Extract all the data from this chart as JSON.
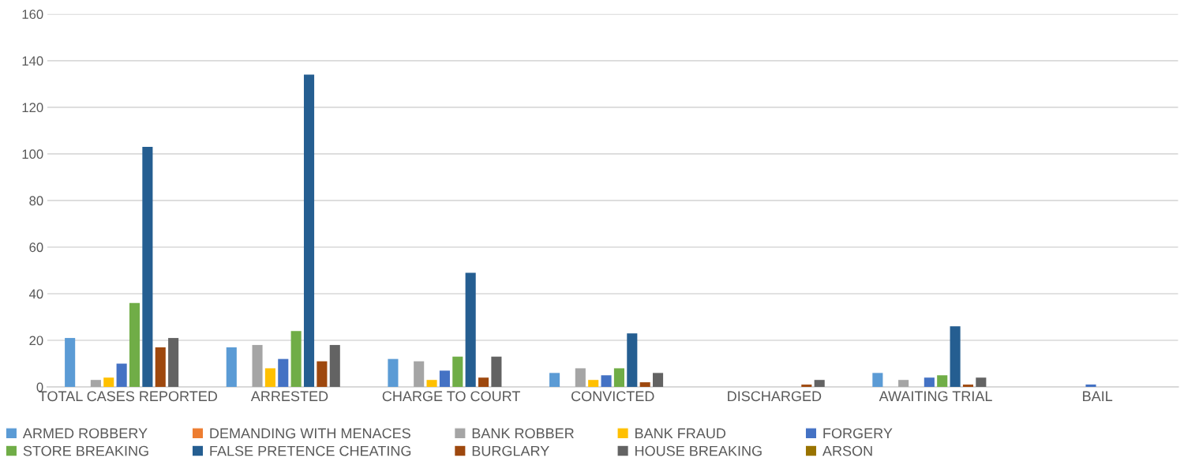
{
  "chart_data": {
    "type": "bar",
    "categories": [
      "TOTAL CASES REPORTED",
      "ARRESTED",
      "CHARGE TO COURT",
      "CONVICTED",
      "DISCHARGED",
      "AWAITING TRIAL",
      "BAIL"
    ],
    "series": [
      {
        "name": "ARMED ROBBERY",
        "color": "#5b9bd5",
        "values": [
          21,
          17,
          12,
          6,
          0,
          6,
          0
        ]
      },
      {
        "name": "DEMANDING WITH MENACES",
        "color": "#ed7d31",
        "values": [
          0,
          0,
          0,
          0,
          0,
          0,
          0
        ]
      },
      {
        "name": "BANK ROBBER",
        "color": "#a5a5a5",
        "values": [
          3,
          18,
          11,
          8,
          0,
          3,
          0
        ]
      },
      {
        "name": "BANK FRAUD",
        "color": "#ffc000",
        "values": [
          4,
          8,
          3,
          3,
          0,
          0,
          0
        ]
      },
      {
        "name": "FORGERY",
        "color": "#4472c4",
        "values": [
          10,
          12,
          7,
          5,
          0,
          4,
          1
        ]
      },
      {
        "name": "STORE BREAKING",
        "color": "#70ad47",
        "values": [
          36,
          24,
          13,
          8,
          0,
          5,
          0
        ]
      },
      {
        "name": "FALSE PRETENCE CHEATING",
        "color": "#255e91",
        "values": [
          103,
          134,
          49,
          23,
          0,
          26,
          0
        ]
      },
      {
        "name": "BURGLARY",
        "color": "#9e480e",
        "values": [
          17,
          11,
          4,
          2,
          1,
          1,
          0
        ]
      },
      {
        "name": "HOUSE BREAKING",
        "color": "#636363",
        "values": [
          21,
          18,
          13,
          6,
          3,
          4,
          0
        ]
      },
      {
        "name": "ARSON",
        "color": "#997300",
        "values": [
          0,
          0,
          0,
          0,
          0,
          0,
          0
        ]
      }
    ],
    "ylim": [
      0,
      160
    ],
    "yticks": [
      0,
      20,
      40,
      60,
      80,
      100,
      120,
      140,
      160
    ],
    "grid": "y",
    "legend": "bottom"
  }
}
